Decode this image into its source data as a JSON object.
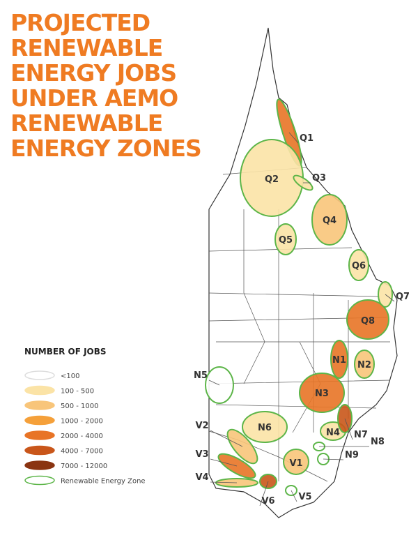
{
  "title": {
    "lines": [
      "PROJECTED",
      "RENEWABLE",
      "ENERGY JOBS",
      "UNDER AEMO",
      "RENEWABLE",
      "ENERGY ZONES"
    ],
    "color": "#ef7b22"
  },
  "legend": {
    "title": "NUMBER OF JOBS",
    "items": [
      {
        "label": "<100",
        "fill": "#ffffff",
        "stroke": "#dddddd"
      },
      {
        "label": "100 - 500",
        "fill": "#fbe3a6",
        "stroke": "#fbe3a6"
      },
      {
        "label": "500 - 1000",
        "fill": "#f8c57a",
        "stroke": "#f8c57a"
      },
      {
        "label": "1000 - 2000",
        "fill": "#f5a03a",
        "stroke": "#f5a03a"
      },
      {
        "label": "2000 - 4000",
        "fill": "#e87426",
        "stroke": "#e87426"
      },
      {
        "label": "4000 - 7000",
        "fill": "#c9561a",
        "stroke": "#c9561a"
      },
      {
        "label": "7000 - 12000",
        "fill": "#8a3411",
        "stroke": "#8a3411"
      },
      {
        "label": "Renewable Energy Zone",
        "fill": "#ffffff",
        "stroke": "#5cb548"
      }
    ]
  },
  "zones": [
    {
      "label": "Q1",
      "fill": "#e87426"
    },
    {
      "label": "Q2",
      "fill": "#fbe3a6"
    },
    {
      "label": "Q3",
      "fill": "#fbe3a6"
    },
    {
      "label": "Q4",
      "fill": "#f8c57a"
    },
    {
      "label": "Q5",
      "fill": "#fbe3a6"
    },
    {
      "label": "Q6",
      "fill": "#fbe3a6"
    },
    {
      "label": "Q7",
      "fill": "#fbe3a6"
    },
    {
      "label": "Q8",
      "fill": "#e87426"
    },
    {
      "label": "N1",
      "fill": "#e87426"
    },
    {
      "label": "N2",
      "fill": "#f8c57a"
    },
    {
      "label": "N3",
      "fill": "#e87426"
    },
    {
      "label": "N4",
      "fill": "#fbe3a6"
    },
    {
      "label": "N5",
      "fill": "#ffffff"
    },
    {
      "label": "N6",
      "fill": "#fbe3a6"
    },
    {
      "label": "N7",
      "fill": "#c9561a"
    },
    {
      "label": "N8",
      "fill": "#ffffff"
    },
    {
      "label": "N9",
      "fill": "#ffffff"
    },
    {
      "label": "V1",
      "fill": "#f8c57a"
    },
    {
      "label": "V2",
      "fill": "#f8c57a"
    },
    {
      "label": "V3",
      "fill": "#e87426"
    },
    {
      "label": "V4",
      "fill": "#f8c57a"
    },
    {
      "label": "V5",
      "fill": "#ffffff"
    },
    {
      "label": "V6",
      "fill": "#c9561a"
    }
  ],
  "zone_stroke": "#5cb548"
}
